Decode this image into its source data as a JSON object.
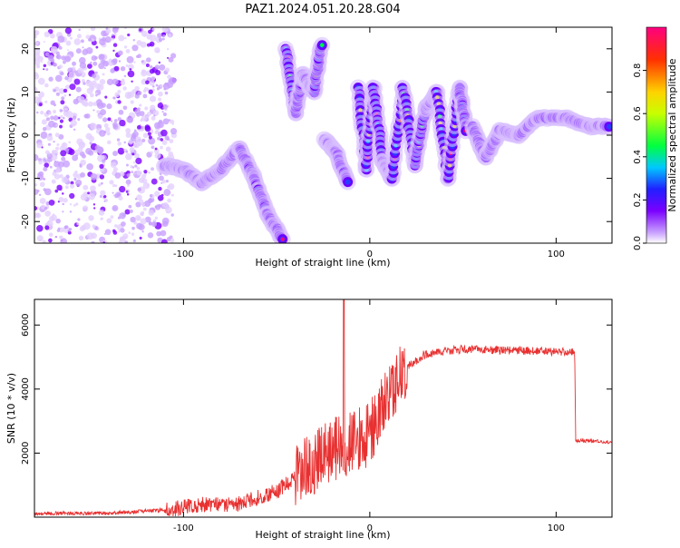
{
  "title": "PAZ1.2024.051.20.28.G04",
  "chart_data": [
    {
      "type": "heatmap",
      "xlabel": "Height of straight line (km)",
      "ylabel": "Frequency (Hz)",
      "xlim": [
        -180,
        130
      ],
      "ylim": [
        -25,
        25
      ],
      "xticks": [
        -100,
        0,
        100
      ],
      "yticks": [
        -20,
        -10,
        0,
        10,
        20
      ],
      "colorbar": {
        "label": "Normalized spectral amplitude",
        "range": [
          0,
          1
        ],
        "ticks": [
          "0.0",
          "0.2",
          "0.4",
          "0.6",
          "0.8"
        ],
        "colors": [
          "#ffffff",
          "#c8a0ff",
          "#7a00ff",
          "#2020ff",
          "#00c8ff",
          "#00ff40",
          "#c8ff00",
          "#ffd200",
          "#ff3000",
          "#ff0080"
        ]
      },
      "traces": [
        {
          "x": [
            -110,
            -100,
            -90,
            -80,
            -70,
            -62,
            -55,
            -47
          ],
          "y": [
            -7,
            -8,
            -11,
            -8,
            -3,
            -10,
            -18,
            -24
          ]
        },
        {
          "x": [
            -45,
            -40,
            -36,
            -30,
            -26
          ],
          "y": [
            20,
            5,
            14,
            10,
            21
          ]
        },
        {
          "x": [
            -24,
            -18,
            -12
          ],
          "y": [
            -1,
            -4,
            -11
          ]
        },
        {
          "x": [
            -6,
            -2,
            2,
            7,
            12,
            18,
            24,
            30,
            36,
            42,
            48,
            52
          ],
          "y": [
            11,
            -8,
            11,
            -6,
            -10,
            11,
            -7,
            6,
            10,
            -10,
            11,
            1
          ]
        },
        {
          "x": [
            55,
            62,
            70,
            80,
            90,
            105,
            118,
            128
          ],
          "y": [
            2,
            -5,
            1,
            0,
            4,
            4,
            2,
            2
          ]
        }
      ]
    },
    {
      "type": "line",
      "xlabel": "Height of straight line (km)",
      "ylabel": "SNR (10 * v/v)",
      "xlim": [
        -180,
        130
      ],
      "ylim": [
        0,
        6800
      ],
      "xticks": [
        -100,
        0,
        100
      ],
      "yticks": [
        2000,
        4000,
        6000
      ],
      "color": "#e83030",
      "series_profile": [
        [
          -180,
          120
        ],
        [
          -140,
          120
        ],
        [
          -110,
          220
        ],
        [
          -90,
          400
        ],
        [
          -70,
          420
        ],
        [
          -50,
          800
        ],
        [
          -35,
          1500
        ],
        [
          -20,
          2100
        ],
        [
          -10,
          2300
        ],
        [
          0,
          2600
        ],
        [
          10,
          3800
        ],
        [
          20,
          4700
        ],
        [
          30,
          5100
        ],
        [
          50,
          5250
        ],
        [
          80,
          5200
        ],
        [
          110,
          5150
        ],
        [
          110.5,
          2400
        ],
        [
          130,
          2330
        ]
      ],
      "spike": {
        "x": -14,
        "y": 6800
      }
    }
  ]
}
